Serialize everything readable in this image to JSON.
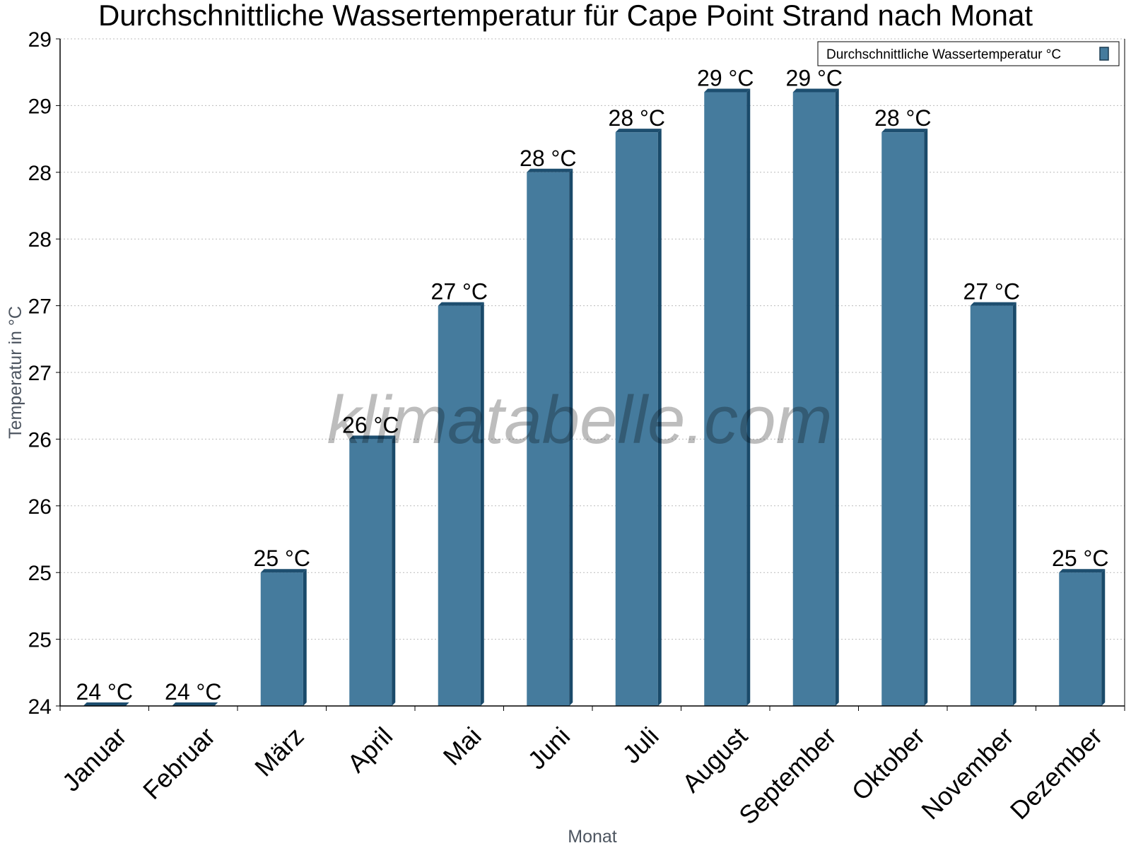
{
  "chart_data": {
    "type": "bar",
    "title": "Durchschnittliche Wassertemperatur für Cape Point Strand nach Monat",
    "xlabel": "Monat",
    "ylabel": "Temperatur in °C",
    "categories": [
      "Januar",
      "Februar",
      "März",
      "April",
      "Mai",
      "Juni",
      "Juli",
      "August",
      "September",
      "Oktober",
      "November",
      "Dezember"
    ],
    "series": [
      {
        "name": "Durchschnittliche Wassertemperatur °C",
        "values": [
          24.0,
          24.0,
          25.0,
          26.0,
          27.0,
          28.0,
          28.3,
          28.6,
          28.6,
          28.3,
          27.0,
          25.0
        ],
        "data_labels": [
          "24 °C",
          "24 °C",
          "25 °C",
          "26 °C",
          "27 °C",
          "28 °C",
          "28 °C",
          "29 °C",
          "29 °C",
          "28 °C",
          "27 °C",
          "25 °C"
        ]
      }
    ],
    "ylim": [
      24.0,
      29.0
    ],
    "y_ticks": [
      24.0,
      24.5,
      25.0,
      25.5,
      26.0,
      26.5,
      27.0,
      27.5,
      28.0,
      28.5,
      29.0
    ],
    "y_tick_labels": [
      "24",
      "25",
      "25",
      "26",
      "26",
      "27",
      "27",
      "28",
      "28",
      "29",
      "29"
    ],
    "grid": true,
    "legend_position": "top-right",
    "colors": {
      "bar": "#457b9d",
      "bar_top": "#1d4e6f",
      "bar_side": "#1a4a6a",
      "grid": "#bbbbbb"
    }
  },
  "watermark": "klimatabelle.com"
}
